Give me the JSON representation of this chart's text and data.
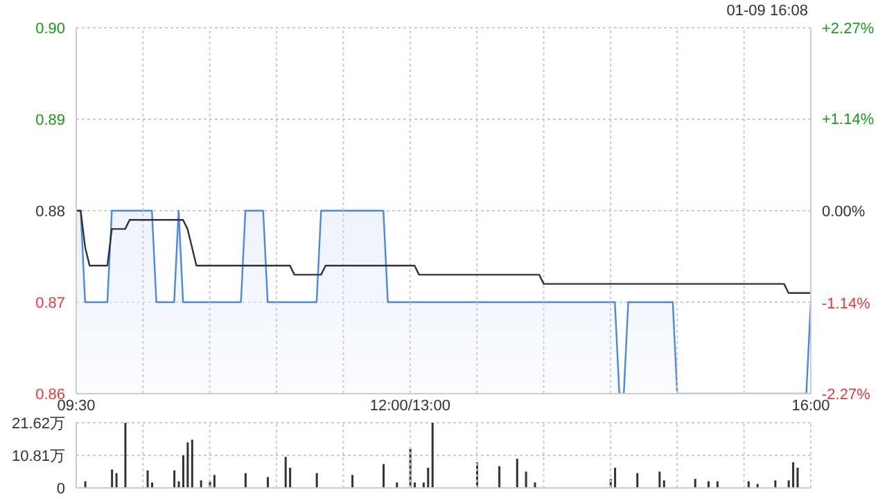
{
  "chart_data": [
    {
      "type": "area",
      "annotations": [
        "01-09 16:08"
      ],
      "categories": [
        "09:30",
        null,
        null,
        null,
        null,
        null,
        null,
        null,
        null,
        null,
        null,
        null,
        null,
        null,
        null,
        null,
        null,
        null,
        null,
        null,
        null,
        null,
        null,
        null,
        null,
        null,
        null,
        null,
        null,
        null,
        null,
        null,
        null,
        null,
        null,
        null,
        null,
        null,
        null,
        null,
        null,
        null,
        null,
        null,
        null,
        null,
        null,
        null,
        null,
        null,
        null,
        null,
        null,
        null,
        null,
        null,
        null,
        null,
        null,
        null,
        null,
        null,
        null,
        null,
        null,
        null,
        null,
        null,
        null,
        null,
        null,
        null,
        null,
        null,
        null,
        "12:00/13:00",
        null,
        null,
        null,
        null,
        null,
        null,
        null,
        null,
        null,
        null,
        null,
        null,
        null,
        null,
        null,
        null,
        null,
        null,
        null,
        null,
        null,
        null,
        null,
        null,
        null,
        null,
        null,
        null,
        null,
        null,
        null,
        null,
        null,
        null,
        null,
        null,
        null,
        null,
        null,
        null,
        null,
        null,
        null,
        null,
        null,
        null,
        null,
        null,
        null,
        null,
        null,
        null,
        null,
        null,
        null,
        null,
        null,
        null,
        null,
        null,
        null,
        null,
        null,
        null,
        null,
        null,
        null,
        null,
        null,
        null,
        null,
        null,
        null,
        null,
        null,
        null,
        null,
        null,
        null,
        null,
        null,
        null,
        null,
        null,
        null,
        null,
        null,
        null,
        null,
        "16:00"
      ],
      "ylim": [
        0.86,
        0.9
      ],
      "yticks": [
        0.86,
        0.87,
        0.88,
        0.89,
        {
          "value": 0.9,
          "label": "0.90"
        }
      ],
      "y2lim": [
        -2.27,
        2.27
      ],
      "y2ticks": [
        {
          "value": -2.27,
          "label": "-2.27%"
        },
        {
          "value": -1.14,
          "label": "-1.14%"
        },
        {
          "value": 0,
          "label": "0.00%"
        },
        {
          "value": 1.14,
          "label": "+1.14%"
        },
        {
          "value": 2.27,
          "label": "+2.27%"
        }
      ],
      "grid": true,
      "series": [
        {
          "type": "area",
          "color": "#4a86e8",
          "values": [
            0.88,
            0.88,
            0.87,
            0.87,
            0.87,
            0.87,
            0.87,
            0.87,
            0.88,
            0.88,
            0.88,
            0.88,
            0.88,
            0.88,
            0.88,
            0.88,
            0.88,
            0.88,
            0.87,
            0.87,
            0.87,
            0.87,
            0.87,
            0.88,
            0.87,
            0.87,
            0.87,
            0.87,
            0.87,
            0.87,
            0.87,
            0.87,
            0.87,
            0.87,
            0.87,
            0.87,
            0.87,
            0.87,
            0.88,
            0.88,
            0.88,
            0.88,
            0.88,
            0.87,
            0.87,
            0.87,
            0.87,
            0.87,
            0.87,
            0.87,
            0.87,
            0.87,
            0.87,
            0.87,
            0.87,
            0.88,
            0.88,
            0.88,
            0.88,
            0.88,
            0.88,
            0.88,
            0.88,
            0.88,
            0.88,
            0.88,
            0.88,
            0.88,
            0.88,
            0.88,
            0.87,
            0.87,
            0.87,
            0.87,
            0.87,
            0.87,
            0.87,
            0.87,
            0.87,
            0.87,
            0.87,
            0.87,
            0.87,
            0.87,
            0.87,
            0.87,
            0.87,
            0.87,
            0.87,
            0.87,
            0.87,
            0.87,
            0.87,
            0.87,
            0.87,
            0.87,
            0.87,
            0.87,
            0.87,
            0.87,
            0.87,
            0.87,
            0.87,
            0.87,
            0.87,
            0.87,
            0.87,
            0.87,
            0.87,
            0.87,
            0.87,
            0.87,
            0.87,
            0.87,
            0.87,
            0.87,
            0.87,
            0.87,
            0.87,
            0.87,
            0.87,
            0.87,
            0.86,
            0.86,
            0.87,
            0.87,
            0.87,
            0.87,
            0.87,
            0.87,
            0.87,
            0.87,
            0.87,
            0.87,
            0.87,
            0.86,
            0.86,
            0.86,
            0.86,
            0.86,
            0.86,
            0.86,
            0.86,
            0.86,
            0.86,
            0.86,
            0.86,
            0.86,
            0.86,
            0.86,
            0.86,
            0.86,
            0.86,
            0.86,
            0.86,
            0.86,
            0.86,
            0.86,
            0.86,
            0.86,
            0.86,
            0.86,
            0.86,
            0.86,
            0.86,
            0.87
          ]
        },
        {
          "type": "line",
          "color": "#333333",
          "values": [
            0.88,
            0.88,
            0.876,
            0.874,
            0.874,
            0.874,
            0.874,
            0.874,
            0.878,
            0.878,
            0.878,
            0.878,
            0.879,
            0.879,
            0.879,
            0.879,
            0.879,
            0.879,
            0.879,
            0.879,
            0.879,
            0.879,
            0.879,
            0.879,
            0.879,
            0.878,
            0.876,
            0.874,
            0.874,
            0.874,
            0.874,
            0.874,
            0.874,
            0.874,
            0.874,
            0.874,
            0.874,
            0.874,
            0.874,
            0.874,
            0.874,
            0.874,
            0.874,
            0.874,
            0.874,
            0.874,
            0.874,
            0.874,
            0.874,
            0.873,
            0.873,
            0.873,
            0.873,
            0.873,
            0.873,
            0.873,
            0.874,
            0.874,
            0.874,
            0.874,
            0.874,
            0.874,
            0.874,
            0.874,
            0.874,
            0.874,
            0.874,
            0.874,
            0.874,
            0.874,
            0.874,
            0.874,
            0.874,
            0.874,
            0.874,
            0.874,
            0.874,
            0.873,
            0.873,
            0.873,
            0.873,
            0.873,
            0.873,
            0.873,
            0.873,
            0.873,
            0.873,
            0.873,
            0.873,
            0.873,
            0.873,
            0.873,
            0.873,
            0.873,
            0.873,
            0.873,
            0.873,
            0.873,
            0.873,
            0.873,
            0.873,
            0.873,
            0.873,
            0.873,
            0.873,
            0.872,
            0.872,
            0.872,
            0.872,
            0.872,
            0.872,
            0.872,
            0.872,
            0.872,
            0.872,
            0.872,
            0.872,
            0.872,
            0.872,
            0.872,
            0.872,
            0.872,
            0.872,
            0.872,
            0.872,
            0.872,
            0.872,
            0.872,
            0.872,
            0.872,
            0.872,
            0.872,
            0.872,
            0.872,
            0.872,
            0.872,
            0.872,
            0.872,
            0.872,
            0.872,
            0.872,
            0.872,
            0.872,
            0.872,
            0.872,
            0.872,
            0.872,
            0.872,
            0.872,
            0.872,
            0.872,
            0.872,
            0.872,
            0.872,
            0.872,
            0.872,
            0.872,
            0.872,
            0.872,
            0.872,
            0.871,
            0.871,
            0.871,
            0.871,
            0.871,
            0.871
          ]
        }
      ]
    },
    {
      "type": "bar",
      "categories": [
        null,
        null,
        null,
        null,
        null,
        null,
        null,
        null,
        null,
        null,
        null,
        null,
        null,
        null,
        null,
        null,
        null,
        null,
        null,
        null,
        null,
        null,
        null,
        null,
        null,
        null,
        null,
        null,
        null,
        null,
        null,
        null,
        null,
        null,
        null,
        null,
        null,
        null,
        null,
        null,
        null,
        null,
        null,
        null,
        null,
        null,
        null,
        null,
        null,
        null,
        null,
        null,
        null,
        null,
        null,
        null,
        null,
        null,
        null,
        null,
        null,
        null,
        null,
        null,
        null,
        null,
        null,
        null,
        null,
        null,
        null,
        null,
        null,
        null,
        null,
        null,
        null,
        null,
        null,
        null,
        null,
        null,
        null,
        null,
        null,
        null,
        null,
        null,
        null,
        null,
        null,
        null,
        null,
        null,
        null,
        null,
        null,
        null,
        null,
        null,
        null,
        null,
        null,
        null,
        null,
        null,
        null,
        null,
        null,
        null,
        null,
        null,
        null,
        null,
        null,
        null,
        null,
        null,
        null,
        null,
        null,
        null,
        null,
        null,
        null,
        null,
        null,
        null,
        null,
        null,
        null,
        null,
        null,
        null,
        null,
        null,
        null,
        null,
        null,
        null,
        null,
        null,
        null,
        null,
        null,
        null,
        null,
        null,
        null,
        null,
        null,
        null,
        null,
        null,
        null,
        null,
        null,
        null,
        null,
        null,
        null,
        null,
        null,
        null,
        null,
        null
      ],
      "ylim": [
        0,
        21.62
      ],
      "yticks": [
        0,
        {
          "value": 10.81,
          "label": "10.81万"
        },
        {
          "value": 21.62,
          "label": "21.62万"
        }
      ],
      "grid": true,
      "tick_labels": "y",
      "color": "#333333",
      "values": [
        null,
        null,
        2.2,
        null,
        null,
        null,
        null,
        null,
        6.1,
        4.9,
        null,
        21.6,
        null,
        null,
        null,
        null,
        5.8,
        1.8,
        null,
        null,
        null,
        null,
        5.8,
        2.2,
        10.8,
        15.1,
        16,
        null,
        2.5,
        null,
        2.2,
        4.3,
        null,
        null,
        null,
        null,
        null,
        null,
        4.9,
        null,
        null,
        null,
        null,
        3.6,
        null,
        null,
        null,
        10.3,
        6.7,
        null,
        null,
        null,
        null,
        null,
        4.9,
        null,
        null,
        null,
        null,
        null,
        null,
        null,
        4.3,
        null,
        null,
        null,
        null,
        null,
        null,
        7.9,
        null,
        null,
        1.8,
        null,
        null,
        13,
        1.8,
        null,
        1.8,
        6.7,
        21.6,
        null,
        null,
        null,
        null,
        null,
        null,
        null,
        null,
        null,
        8.5,
        null,
        null,
        null,
        null,
        7.2,
        null,
        null,
        null,
        9.7,
        null,
        5.4,
        null,
        1.8,
        null,
        null,
        null,
        null,
        null,
        null,
        null,
        null,
        null,
        null,
        null,
        null,
        null,
        null,
        null,
        null,
        3,
        6.7,
        null,
        null,
        null,
        null,
        4.9,
        null,
        null,
        null,
        null,
        5.4,
        2.5,
        null,
        null,
        null,
        null,
        null,
        null,
        3,
        null,
        null,
        2.2,
        null,
        2.2,
        null,
        null,
        null,
        null,
        null,
        null,
        2.2,
        null,
        1.3,
        null,
        null,
        null,
        2.5,
        null,
        null,
        2.5,
        8.5,
        6.7,
        null,
        null,
        null
      ]
    }
  ]
}
